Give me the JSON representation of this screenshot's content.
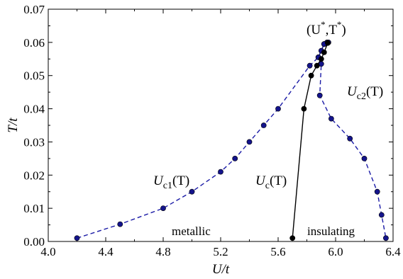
{
  "chart_data": {
    "type": "line",
    "xlabel": "U/t",
    "ylabel": "T/t",
    "xlim": [
      4.0,
      6.4
    ],
    "ylim": [
      0.0,
      0.07
    ],
    "x_ticks": [
      "4.0",
      "4.4",
      "4.8",
      "5.2",
      "5.6",
      "6.0",
      "6.4"
    ],
    "x_tick_values": [
      4.0,
      4.4,
      4.8,
      5.2,
      5.6,
      6.0,
      6.4
    ],
    "y_ticks": [
      "0.00",
      "0.01",
      "0.02",
      "0.03",
      "0.04",
      "0.05",
      "0.06",
      "0.07"
    ],
    "y_tick_values": [
      0.0,
      0.01,
      0.02,
      0.03,
      0.04,
      0.05,
      0.06,
      0.07
    ],
    "grid": false,
    "series": [
      {
        "label": "Uc1(T)",
        "color": "#1a1aa6",
        "marker_fill": "#14148c",
        "line_style": "dashed",
        "x": [
          4.2,
          4.5,
          4.8,
          5.0,
          5.2,
          5.3,
          5.4,
          5.5,
          5.6,
          5.82,
          5.88,
          5.9,
          5.92,
          5.94
        ],
        "y": [
          0.001,
          0.0052,
          0.01,
          0.015,
          0.021,
          0.025,
          0.03,
          0.035,
          0.04,
          0.053,
          0.0555,
          0.0575,
          0.0595,
          0.06
        ]
      },
      {
        "label": "Uc2(T)",
        "color": "#1a1aa6",
        "marker_fill": "#14148c",
        "line_style": "dashed",
        "x": [
          5.95,
          5.92,
          5.88,
          5.9,
          5.89,
          5.97,
          6.1,
          6.2,
          6.29,
          6.32,
          6.35
        ],
        "y": [
          0.06,
          0.0595,
          0.0555,
          0.0535,
          0.044,
          0.037,
          0.031,
          0.025,
          0.015,
          0.008,
          0.001
        ]
      },
      {
        "label": "Uc(T)",
        "color": "#000000",
        "marker_fill": "#000000",
        "line_style": "solid",
        "x": [
          5.7,
          5.78,
          5.83,
          5.87,
          5.9,
          5.92,
          5.945
        ],
        "y": [
          0.001,
          0.04,
          0.05,
          0.053,
          0.055,
          0.057,
          0.0598
        ]
      }
    ],
    "annotations": {
      "critical_point": {
        "main": "(U",
        "sup1": "*",
        "mid": ",T",
        "sup2": "*",
        "end": ")"
      },
      "uc1": {
        "main": "U",
        "sub": "c1",
        "arg": "(T)"
      },
      "uc2": {
        "main": "U",
        "sub": "c2",
        "arg": "(T)"
      },
      "uc": {
        "main": "U",
        "sub": "c",
        "arg": "(T)"
      },
      "metallic": "metallic",
      "insulating": "insulating"
    }
  }
}
